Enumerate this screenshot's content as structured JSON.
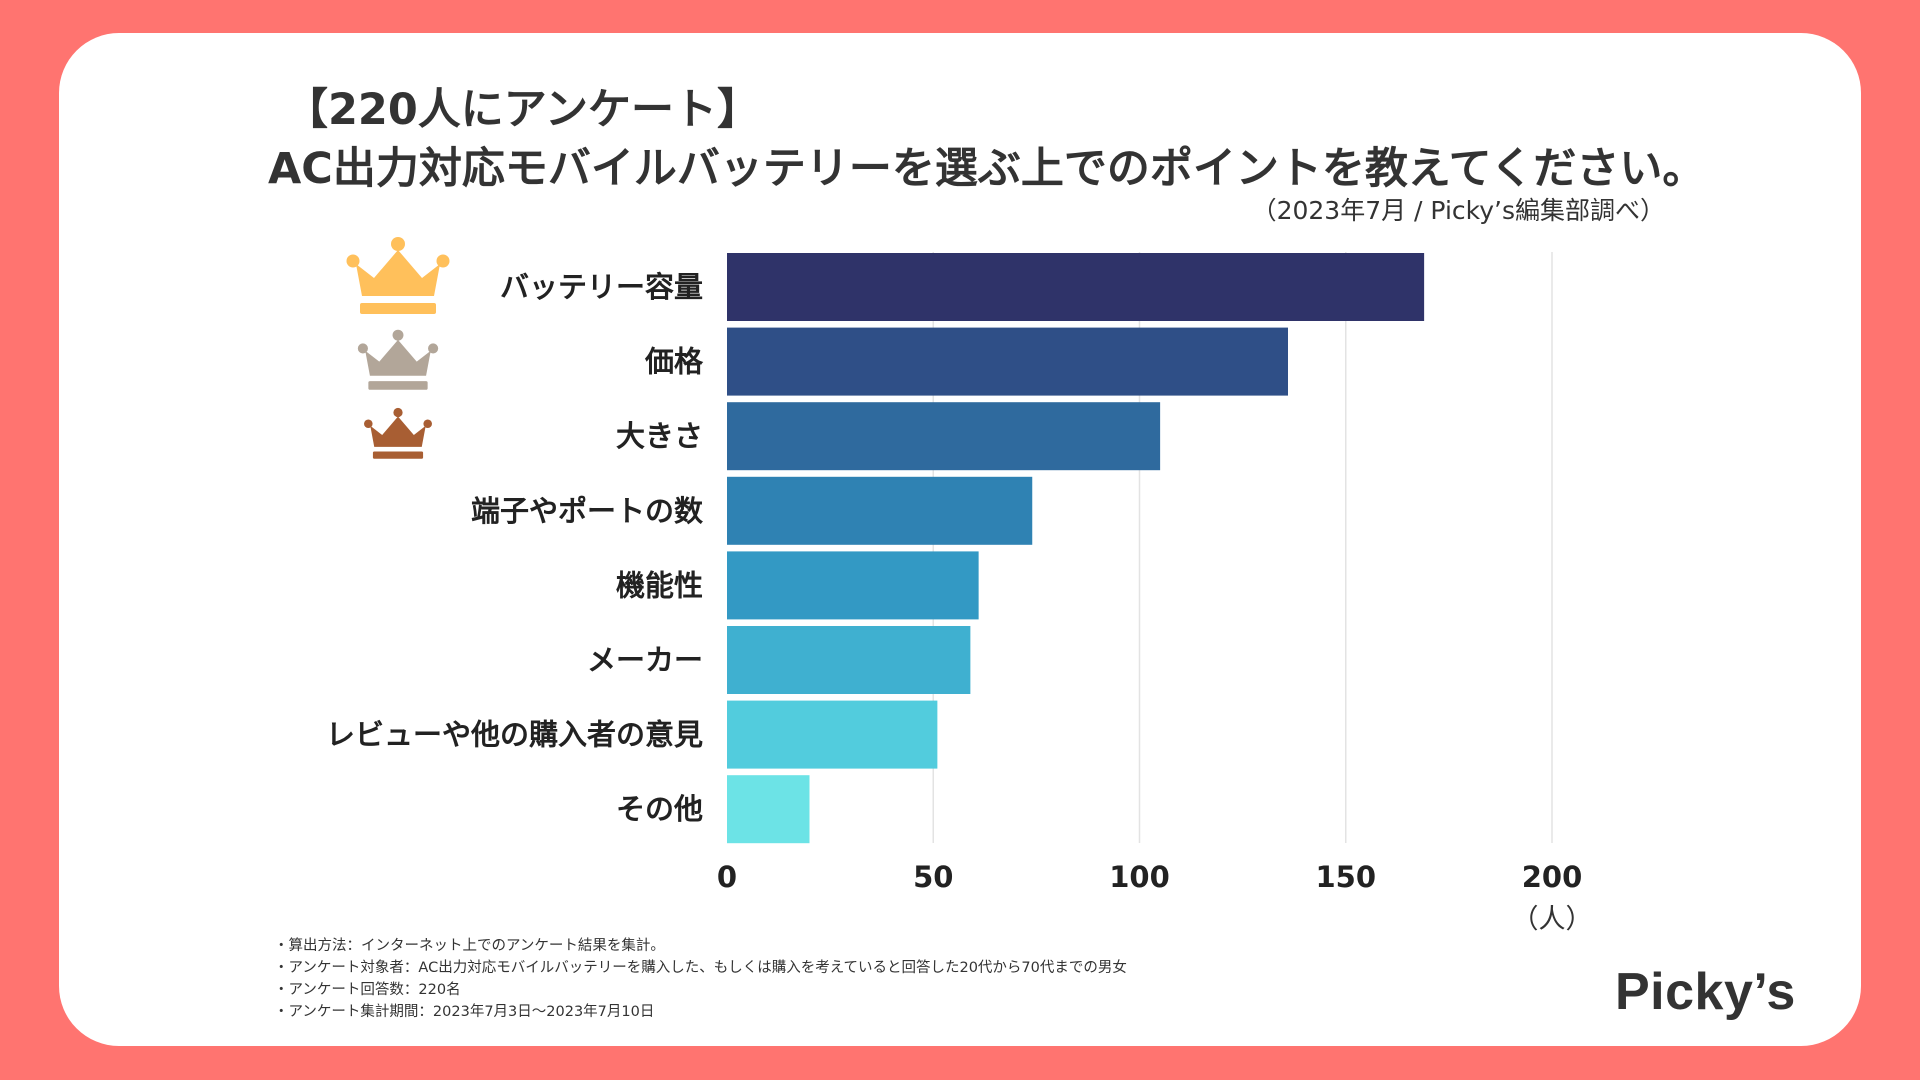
{
  "header": {
    "title_line1": "【220人にアンケート】",
    "title_line2": "AC出力対応モバイルバッテリーを選ぶ上でのポイントを教えてください。",
    "source": "（2023年7月 / Picky’s編集部調べ）"
  },
  "chart_data": {
    "type": "bar",
    "orientation": "horizontal",
    "categories": [
      "バッテリー容量",
      "価格",
      "大きさ",
      "端子やポートの数",
      "機能性",
      "メーカー",
      "レビューや他の購入者の意見",
      "その他"
    ],
    "values": [
      169,
      136,
      105,
      74,
      61,
      59,
      51,
      20
    ],
    "bar_colors": [
      "#2F3369",
      "#2F4F87",
      "#2F6A9E",
      "#2F82B3",
      "#3399C4",
      "#3FB0D0",
      "#52CCDD",
      "#6CE3E6"
    ],
    "xlim": [
      0,
      200
    ],
    "xticks": [
      0,
      50,
      100,
      150,
      200
    ],
    "xlabel": "（人）",
    "grid": true,
    "ranks": [
      {
        "rank": 1,
        "icon": "gold-crown-icon",
        "color": "#FFC05B"
      },
      {
        "rank": 2,
        "icon": "silver-crown-icon",
        "color": "#B2A699"
      },
      {
        "rank": 3,
        "icon": "bronze-crown-icon",
        "color": "#A85E33"
      }
    ]
  },
  "notes": [
    "・算出方法：インターネット上でのアンケート結果を集計。",
    "・アンケート対象者：AC出力対応モバイルバッテリーを購入した、もしくは購入を考えていると回答した20代から70代までの男女",
    "・アンケート回答数：220名",
    "・アンケート集計期間：2023年7月3日〜2023年7月10日"
  ],
  "logo": "Picky’s"
}
